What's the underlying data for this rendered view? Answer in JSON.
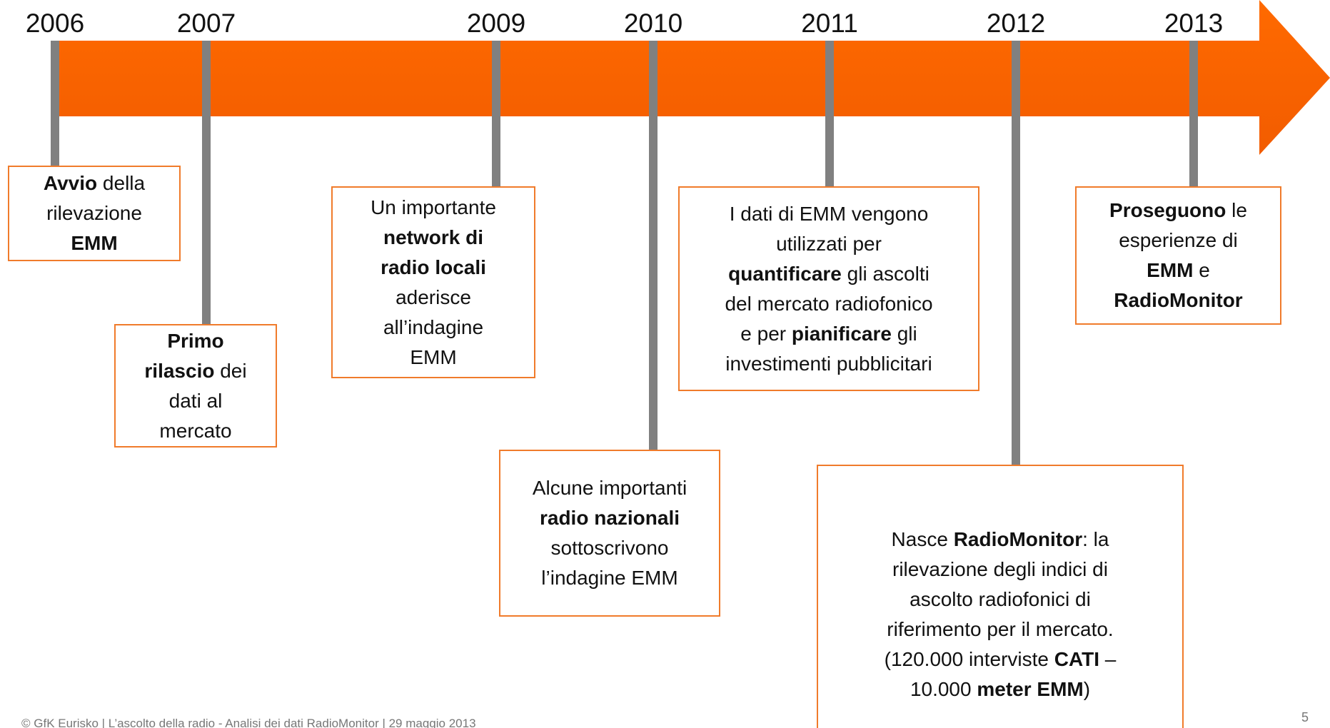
{
  "timeline": {
    "years": [
      "2006",
      "2007",
      "2009",
      "2010",
      "2011",
      "2012",
      "2013"
    ],
    "events": [
      {
        "lines": [
          [
            {
              "text": "Avvio",
              "bold": true
            },
            {
              "text": " della"
            }
          ],
          [
            {
              "text": "rilevazione"
            }
          ],
          [
            {
              "text": "EMM",
              "bold": true
            }
          ]
        ]
      },
      {
        "lines": [
          [
            {
              "text": "Primo",
              "bold": true
            }
          ],
          [
            {
              "text": "rilascio",
              "bold": true
            },
            {
              "text": " dei"
            }
          ],
          [
            {
              "text": "dati al"
            }
          ],
          [
            {
              "text": "mercato"
            }
          ]
        ]
      },
      {
        "lines": [
          [
            {
              "text": "Un importante"
            }
          ],
          [
            {
              "text": "network di",
              "bold": true
            }
          ],
          [
            {
              "text": "radio locali",
              "bold": true
            }
          ],
          [
            {
              "text": "aderisce"
            }
          ],
          [
            {
              "text": "all’indagine"
            }
          ],
          [
            {
              "text": "EMM"
            }
          ]
        ]
      },
      {
        "lines": [
          [
            {
              "text": "Alcune importanti"
            }
          ],
          [
            {
              "text": "radio nazionali",
              "bold": true
            }
          ],
          [
            {
              "text": "sottoscrivono"
            }
          ],
          [
            {
              "text": "l’indagine EMM"
            }
          ]
        ]
      },
      {
        "lines": [
          [
            {
              "text": "I dati di EMM vengono"
            }
          ],
          [
            {
              "text": "utilizzati per"
            }
          ],
          [
            {
              "text": "quantificare",
              "bold": true
            },
            {
              "text": " gli ascolti"
            }
          ],
          [
            {
              "text": "del mercato radiofonico"
            }
          ],
          [
            {
              "text": "e per "
            },
            {
              "text": "pianificare",
              "bold": true
            },
            {
              "text": " gli"
            }
          ],
          [
            {
              "text": "investimenti pubblicitari"
            }
          ]
        ]
      },
      {
        "lines": [
          [
            {
              "text": "Nasce "
            },
            {
              "text": "RadioMonitor",
              "bold": true
            },
            {
              "text": ": la"
            }
          ],
          [
            {
              "text": "rilevazione degli indici di"
            }
          ],
          [
            {
              "text": "ascolto radiofonici di"
            }
          ],
          [
            {
              "text": "riferimento per il mercato."
            }
          ],
          [
            {
              "text": "(120.000 interviste "
            },
            {
              "text": "CATI",
              "bold": true
            },
            {
              "text": " –"
            }
          ],
          [
            {
              "text": "10.000 "
            },
            {
              "text": "meter EMM",
              "bold": true
            },
            {
              "text": ")"
            }
          ]
        ]
      },
      {
        "lines": [
          [
            {
              "text": "Proseguono",
              "bold": true
            },
            {
              "text": " le"
            }
          ],
          [
            {
              "text": "esperienze di"
            }
          ],
          [
            {
              "text": "EMM",
              "bold": true
            },
            {
              "text": " e"
            }
          ],
          [
            {
              "text": "RadioMonitor",
              "bold": true
            }
          ]
        ]
      }
    ]
  },
  "footer": {
    "text": "© GfK Eurisko | L’ascolto della radio -  Analisi dei dati RadioMonitor | 29 maggio 2013",
    "page": "5"
  }
}
